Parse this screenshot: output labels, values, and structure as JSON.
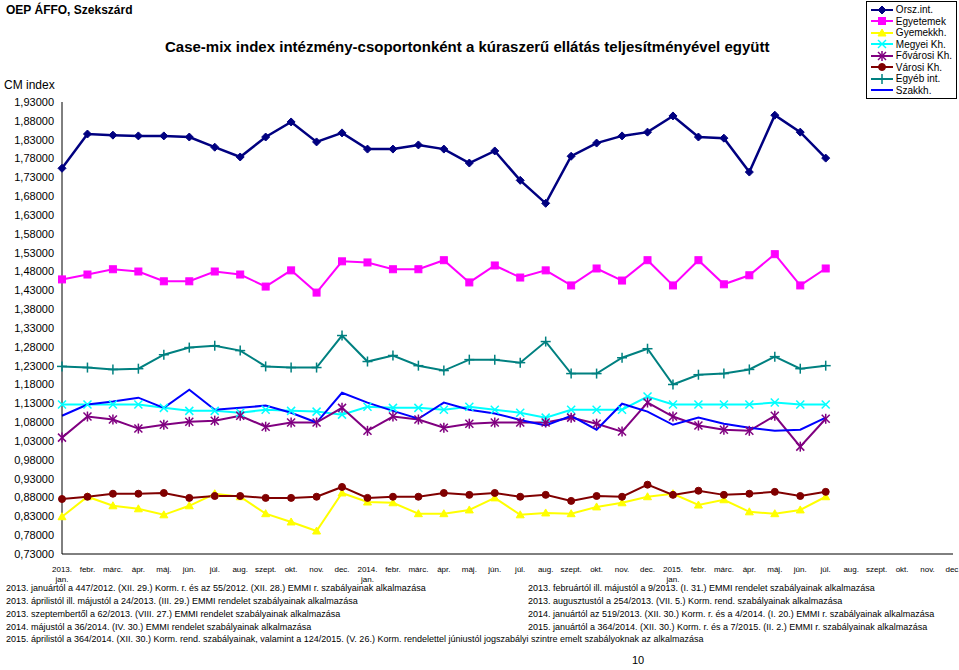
{
  "header": "OEP ÁFFO, Szekszárd",
  "chart_data": {
    "type": "line",
    "title": "Case-mix index intézmény-csoportonként a kúraszerű ellátás teljesítményével együtt",
    "y_label": "CM index",
    "categories": [
      "2013. jan.",
      "febr.",
      "márc.",
      "ápr.",
      "máj.",
      "jún.",
      "júl.",
      "aug.",
      "szept.",
      "okt.",
      "nov.",
      "dec.",
      "2014. jan.",
      "febr.",
      "márc.",
      "ápr.",
      "máj.",
      "jún.",
      "júl.",
      "aug.",
      "szept.",
      "okt.",
      "nov.",
      "dec.",
      "2015. jan.",
      "febr.",
      "márc.",
      "ápr.",
      "máj.",
      "jún.",
      "júl.",
      "aug.",
      "szept.",
      "okt.",
      "nov.",
      "dec."
    ],
    "series": [
      {
        "name": "Orsz.int.",
        "color": "#000080",
        "marker": "diamond",
        "values": [
          1.754,
          1.845,
          1.842,
          1.84,
          1.84,
          1.837,
          1.81,
          1.784,
          1.837,
          1.877,
          1.824,
          1.848,
          1.805,
          1.805,
          1.816,
          1.805,
          1.768,
          1.8,
          1.722,
          1.661,
          1.786,
          1.821,
          1.84,
          1.85,
          1.893,
          1.837,
          1.834,
          1.744,
          1.895,
          1.85,
          1.781,
          null,
          null,
          null,
          null,
          null
        ]
      },
      {
        "name": "Egyetemek",
        "color": "#ff00ff",
        "marker": "square",
        "values": [
          1.459,
          1.472,
          1.486,
          1.48,
          1.454,
          1.454,
          1.48,
          1.472,
          1.44,
          1.483,
          1.424,
          1.507,
          1.504,
          1.486,
          1.486,
          1.51,
          1.451,
          1.496,
          1.464,
          1.483,
          1.443,
          1.488,
          1.456,
          1.51,
          1.443,
          1.51,
          1.446,
          1.47,
          1.526,
          1.443,
          1.488,
          null,
          null,
          null,
          null,
          null
        ]
      },
      {
        "name": "Gyemekkh.",
        "color": "#ffff00",
        "marker": "triangle",
        "values": [
          0.829,
          0.882,
          0.858,
          0.85,
          0.834,
          0.858,
          0.89,
          0.882,
          0.837,
          0.815,
          0.791,
          0.892,
          0.868,
          0.866,
          0.837,
          0.837,
          0.847,
          0.879,
          0.834,
          0.839,
          0.837,
          0.855,
          0.866,
          0.882,
          0.89,
          0.86,
          0.874,
          0.842,
          0.837,
          0.847,
          0.882,
          null,
          null,
          null,
          null,
          null
        ]
      },
      {
        "name": "Megyei Kh.",
        "color": "#00ffff",
        "marker": "x",
        "values": [
          1.127,
          1.127,
          1.127,
          1.127,
          1.118,
          1.11,
          1.11,
          1.105,
          1.113,
          1.11,
          1.108,
          1.1,
          1.121,
          1.118,
          1.118,
          1.113,
          1.121,
          1.113,
          1.105,
          1.092,
          1.113,
          1.113,
          1.113,
          1.148,
          1.127,
          1.127,
          1.127,
          1.127,
          1.132,
          1.127,
          1.127,
          null,
          null,
          null,
          null,
          null
        ]
      },
      {
        "name": "Fővárosi Kh.",
        "color": "#800080",
        "marker": "star",
        "values": [
          1.039,
          1.095,
          1.087,
          1.063,
          1.073,
          1.081,
          1.084,
          1.097,
          1.068,
          1.079,
          1.079,
          1.118,
          1.057,
          1.095,
          1.087,
          1.065,
          1.076,
          1.079,
          1.079,
          1.079,
          1.092,
          1.076,
          1.055,
          1.132,
          1.095,
          1.071,
          1.06,
          1.057,
          1.097,
          1.015,
          1.089,
          null,
          null,
          null,
          null,
          null
        ]
      },
      {
        "name": "Városi Kh.",
        "color": "#800000",
        "marker": "circle",
        "values": [
          0.876,
          0.882,
          0.89,
          0.89,
          0.892,
          0.879,
          0.884,
          0.884,
          0.879,
          0.879,
          0.882,
          0.908,
          0.879,
          0.882,
          0.882,
          0.892,
          0.887,
          0.892,
          0.882,
          0.887,
          0.871,
          0.884,
          0.882,
          0.914,
          0.887,
          0.898,
          0.887,
          0.89,
          0.895,
          0.884,
          0.895,
          null,
          null,
          null,
          null,
          null
        ]
      },
      {
        "name": "Egyéb int.",
        "color": "#008080",
        "marker": "plus",
        "values": [
          1.228,
          1.225,
          1.22,
          1.222,
          1.259,
          1.278,
          1.283,
          1.27,
          1.228,
          1.225,
          1.225,
          1.31,
          1.241,
          1.257,
          1.23,
          1.217,
          1.246,
          1.246,
          1.238,
          1.294,
          1.209,
          1.209,
          1.251,
          1.275,
          1.18,
          1.206,
          1.209,
          1.22,
          1.254,
          1.222,
          1.23,
          null,
          null,
          null,
          null,
          null
        ]
      },
      {
        "name": "Szakkh.",
        "color": "#0000ff",
        "marker": "none",
        "values": [
          1.097,
          1.127,
          1.135,
          1.145,
          1.118,
          1.166,
          1.113,
          1.118,
          1.124,
          1.105,
          1.079,
          1.158,
          1.132,
          1.11,
          1.089,
          1.132,
          1.113,
          1.103,
          1.086,
          1.071,
          1.097,
          1.06,
          1.129,
          1.108,
          1.073,
          1.092,
          1.076,
          1.065,
          1.057,
          1.06,
          1.092,
          null,
          null,
          null,
          null,
          null
        ]
      }
    ],
    "ylim": [
      0.73,
      1.93
    ],
    "yticks": [
      {
        "value": 0.73,
        "label": "0,73000"
      },
      {
        "value": 0.78,
        "label": "0,78000"
      },
      {
        "value": 0.83,
        "label": "0,83000"
      },
      {
        "value": 0.88,
        "label": "0,88000"
      },
      {
        "value": 0.93,
        "label": "0,93000"
      },
      {
        "value": 0.98,
        "label": "0,98000"
      },
      {
        "value": 1.03,
        "label": "1,03000"
      },
      {
        "value": 1.08,
        "label": "1,08000"
      },
      {
        "value": 1.13,
        "label": "1,13000"
      },
      {
        "value": 1.18,
        "label": "1,18000"
      },
      {
        "value": 1.23,
        "label": "1,23000"
      },
      {
        "value": 1.28,
        "label": "1,28000"
      },
      {
        "value": 1.33,
        "label": "1,33000"
      },
      {
        "value": 1.38,
        "label": "1,38000"
      },
      {
        "value": 1.43,
        "label": "1,43000"
      },
      {
        "value": 1.48,
        "label": "1,48000"
      },
      {
        "value": 1.53,
        "label": "1,53000"
      },
      {
        "value": 1.58,
        "label": "1,58000"
      },
      {
        "value": 1.63,
        "label": "1,63000"
      },
      {
        "value": 1.68,
        "label": "1,68000"
      },
      {
        "value": 1.73,
        "label": "1,73000"
      },
      {
        "value": 1.78,
        "label": "1,78000"
      },
      {
        "value": 1.83,
        "label": "1,83000"
      },
      {
        "value": 1.88,
        "label": "1,88000"
      },
      {
        "value": 1.93,
        "label": "1,93000"
      }
    ],
    "grid": false,
    "legend": "top-right"
  },
  "footnotes": {
    "left": [
      "2013. januártól a 447/2012. (XII. 29.) Korm. r. és az 55/2012. (XII. 28.) EMMI r. szabályainak alkalmazása",
      "2013. áprilistól ill. májustól a 24/2013. (III. 29.) EMMI rendelet szabályainak alkalmazása",
      "2013. szeptembertől a 62/2013. (VIII. 27.) EMMI rendelet szabályainak alkalmazása",
      "2014. májustól a 36/2014. (IV. 30.) EMMI rendelet szabályainak alkalmazása"
    ],
    "right": [
      "2013. februártól ill. májustól a 9/2013. (I. 31.) EMMI rendelet szabályainak alkalmazása",
      "2013. augusztustól a 254/2013. (VII. 5.) Korm. rend. szabályainak alkalmazása",
      "2014. januártól az 519/2013. (XII. 30.) Korm. r. és a 4/2014. (I. 20.) EMMI r. szabályainak alkalmazása",
      "2015. januártól a 364/2014. (XII. 30.) Korm. r. és a 7/2015. (II. 2.) EMMI r. szabályainak alkalmazása"
    ],
    "full": "2015. áprilistól a 364/2014. (XII. 30.) Korm. rend. szabályainak, valamint a 124/2015. (V. 26.) Korm. rendelettel júniustól jogszabályi szintre emelt szabályoknak az alkalmazása"
  },
  "page_number": "10"
}
